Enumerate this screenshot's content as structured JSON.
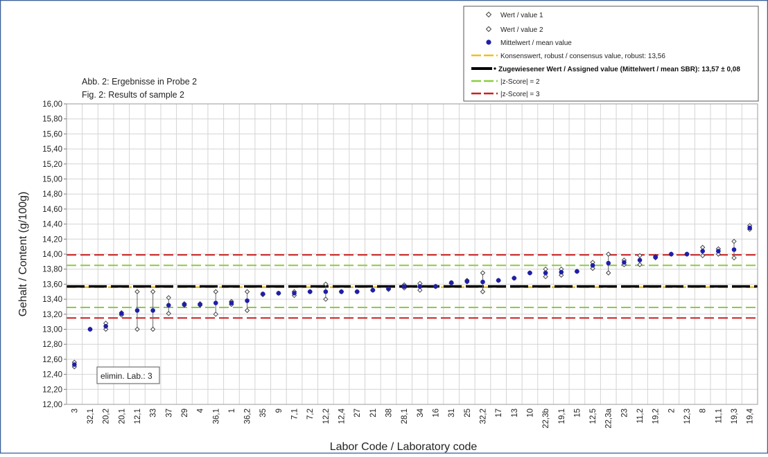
{
  "chart_data": {
    "type": "scatter",
    "caption": {
      "line1": "Abb. 2:  Ergebnisse in Probe 2",
      "line2": "Fig.  2:  Results of sample 2"
    },
    "xlabel": "Labor Code / Laboratory code",
    "ylabel": "Gehalt / Content (g/100g)",
    "ylim": [
      12.0,
      16.0
    ],
    "yticks": [
      "12,00",
      "12,20",
      "12,40",
      "12,60",
      "12,80",
      "13,00",
      "13,20",
      "13,40",
      "13,60",
      "13,80",
      "14,00",
      "14,20",
      "14,40",
      "14,60",
      "14,80",
      "15,00",
      "15,20",
      "15,40",
      "15,60",
      "15,80",
      "16,00"
    ],
    "grid": true,
    "legend_position": "top-right",
    "legend": {
      "value1": "Wert / value 1",
      "value2": "Wert / value 2",
      "mean": "Mittelwert / mean value",
      "consensus": "Konsenswert, robust / consensus value, robust: 13,56",
      "assigned": "Zugewiesener Wert / Assigned value (Mittelwert / mean SBR): 13,57 ±  0,08",
      "z2": "|z-Score| = 2",
      "z3": "|z-Score| = 3"
    },
    "elimin_label": "elimin. Lab.: 3",
    "categories": [
      "3",
      "32,1",
      "20,2",
      "20,1",
      "12,1",
      "33",
      "37",
      "29",
      "4",
      "36,1",
      "1",
      "36,2",
      "35",
      "9",
      "7,1",
      "7,2",
      "12,2",
      "12,4",
      "27",
      "21",
      "38",
      "28,1",
      "34",
      "16",
      "31",
      "25",
      "32,2",
      "17",
      "13",
      "10",
      "22,3b",
      "19,1",
      "15",
      "12,5",
      "22,3a",
      "23",
      "11,2",
      "19,2",
      "2",
      "12,3",
      "8",
      "11,1",
      "19,3",
      "19,4"
    ],
    "value1": [
      12.56,
      13.0,
      13.08,
      13.22,
      13.5,
      13.5,
      13.42,
      13.34,
      13.34,
      13.5,
      13.37,
      13.5,
      13.47,
      13.48,
      13.5,
      13.5,
      13.6,
      13.5,
      13.5,
      13.52,
      13.54,
      13.59,
      13.61,
      13.57,
      13.62,
      13.65,
      13.75,
      13.65,
      13.68,
      13.75,
      13.8,
      13.8,
      13.77,
      13.89,
      14.0,
      13.92,
      13.98,
      13.97,
      14.0,
      14.0,
      14.09,
      14.07,
      14.17,
      14.38
    ],
    "value2": [
      12.5,
      13.0,
      13.0,
      13.19,
      13.0,
      13.0,
      13.21,
      13.32,
      13.32,
      13.2,
      13.33,
      13.25,
      13.46,
      13.48,
      13.45,
      13.5,
      13.4,
      13.5,
      13.5,
      13.52,
      13.53,
      13.55,
      13.52,
      13.57,
      13.61,
      13.63,
      13.5,
      13.65,
      13.68,
      13.75,
      13.7,
      13.72,
      13.77,
      13.81,
      13.75,
      13.86,
      13.86,
      13.95,
      14.0,
      14.0,
      13.98,
      14.0,
      13.95,
      14.33
    ],
    "mean": [
      12.53,
      13.0,
      13.04,
      13.21,
      13.25,
      13.25,
      13.32,
      13.33,
      13.33,
      13.35,
      13.35,
      13.38,
      13.47,
      13.48,
      13.48,
      13.5,
      13.5,
      13.5,
      13.5,
      13.52,
      13.54,
      13.57,
      13.57,
      13.57,
      13.62,
      13.64,
      13.63,
      13.65,
      13.68,
      13.75,
      13.75,
      13.76,
      13.77,
      13.85,
      13.88,
      13.89,
      13.92,
      13.96,
      14.0,
      14.0,
      14.04,
      14.04,
      14.06,
      14.35
    ],
    "eliminated_index": 0,
    "consensus_value": 13.56,
    "assigned_value": 13.57,
    "z2_lower": 13.29,
    "z2_upper": 13.85,
    "z3_lower": 13.15,
    "z3_upper": 13.99,
    "colors": {
      "mean": "#1f1fa8",
      "consensus": "#f0c020",
      "assigned": "#000000",
      "z2": "#8ccc40",
      "z3": "#cc2020",
      "grid": "#d4d4d4",
      "frame": "#3a5f9a"
    }
  }
}
